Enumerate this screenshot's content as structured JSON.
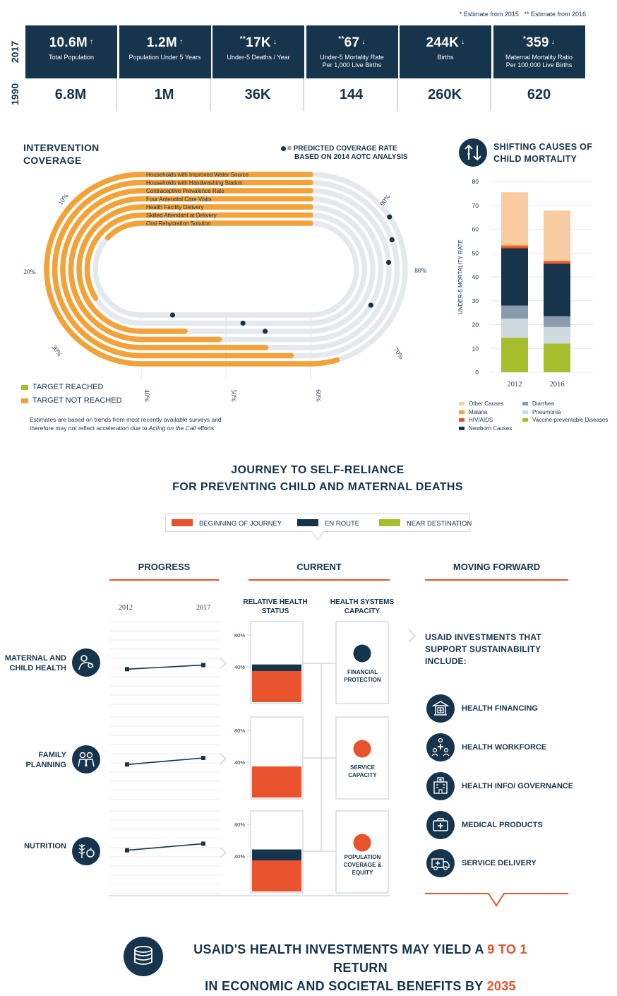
{
  "notes": {
    "n2015": "* Estimate from 2015",
    "n2016": "** Estimate from 2016"
  },
  "years": {
    "current": "2017",
    "baseline": "1990"
  },
  "stats": [
    {
      "prefix": "",
      "value": "10.6M",
      "arrow": "↑",
      "label": "Total Population",
      "label2": "",
      "baseline": "6.8M"
    },
    {
      "prefix": "",
      "value": "1.2M",
      "arrow": "↑",
      "label": "Population Under 5 Years",
      "label2": "",
      "baseline": "1M"
    },
    {
      "prefix": "**",
      "value": "17K",
      "arrow": "↓",
      "label": "Under-5 Deaths / Year",
      "label2": "",
      "baseline": "36K"
    },
    {
      "prefix": "**",
      "value": "67",
      "arrow": "↓",
      "label": "Under-5 Mortality Rate",
      "label2": "Per 1,000 Live Births",
      "baseline": "144"
    },
    {
      "prefix": "",
      "value": "244K",
      "arrow": "↓",
      "label": "Births",
      "label2": "",
      "baseline": "260K"
    },
    {
      "prefix": "*",
      "value": "359",
      "arrow": "↓",
      "label": "Maternal Mortality Ratio",
      "label2": "Per 100,000 Live Births",
      "baseline": "620"
    }
  ],
  "coverage": {
    "title1": "INTERVENTION",
    "title2": "COVERAGE",
    "predicted1": "= PREDICTED COVERAGE RATE",
    "predicted2": "BASED ON 2014 AOTC ANALYSIS",
    "legend_reached": "TARGET REACHED",
    "legend_not_reached": "TARGET NOT REACHED",
    "footnote1": "Estimates are based on trends from most recently available surveys and",
    "footnote2": "therefore may not reflect acceleration due to",
    "footnote_em": "Acting on the Call",
    "footnote3": "efforts",
    "ticks": [
      "10%",
      "20%",
      "30%",
      "40%",
      "50%",
      "60%",
      "70%",
      "80%",
      "90%"
    ]
  },
  "mortality": {
    "title1": "SHIFTING CAUSES OF",
    "title2": "CHILD MORTALITY",
    "ylabel": "UNDER-5 MORTALITY RATE",
    "legend": {
      "other": "Other Causes",
      "malaria": "Malaria",
      "hiv": "HIV/AIDS",
      "newborn": "Newborn Causes",
      "diarrhea": "Diarrhea",
      "pneumonia": "Pneumonia",
      "vaccine": "Vaccine-preventable Diseases"
    }
  },
  "chart_data": [
    {
      "type": "area",
      "name": "intervention-coverage",
      "series": [
        {
          "name": "Households with Improved Water Source",
          "coverage_pct": 8,
          "predicted_pct": 90
        },
        {
          "name": "Households with Handwashing Station",
          "coverage_pct": 8,
          "predicted_pct": 88
        },
        {
          "name": "Contraceptive Prevalence Rate",
          "coverage_pct": 8,
          "predicted_pct": 86
        },
        {
          "name": "Four Antenatal Care Visits",
          "coverage_pct": 8,
          "predicted_pct": 81
        },
        {
          "name": "Health Facility Delivery",
          "coverage_pct": 8,
          "predicted_pct": 67
        },
        {
          "name": "Skilled Attendant at Delivery",
          "coverage_pct": 8,
          "predicted_pct": 65
        },
        {
          "name": "Oral Rehydration Solution",
          "coverage_pct": 8,
          "predicted_pct": 55
        }
      ],
      "bar_values_pct": [
        71,
        67,
        65,
        60,
        56,
        42,
        33
      ]
    },
    {
      "type": "bar",
      "name": "shifting-causes-of-child-mortality",
      "categories": [
        "2012",
        "2016"
      ],
      "ylabel": "UNDER-5 MORTALITY RATE",
      "ylim": [
        0,
        80
      ],
      "yticks": [
        0,
        10,
        20,
        30,
        40,
        50,
        60,
        70,
        80
      ],
      "stacked": true,
      "series": [
        {
          "name": "Vaccine-preventable Diseases",
          "color": "#a8bf2d",
          "values": [
            14.5,
            12
          ]
        },
        {
          "name": "Pneumonia",
          "color": "#cfdade",
          "values": [
            8,
            7
          ]
        },
        {
          "name": "Diarrhea",
          "color": "#8a9bb0",
          "values": [
            5.5,
            4.5
          ]
        },
        {
          "name": "Newborn Causes",
          "color": "#16344c",
          "values": [
            24,
            22
          ]
        },
        {
          "name": "HIV/AIDS",
          "color": "#e8532d",
          "values": [
            1,
            1
          ]
        },
        {
          "name": "Malaria",
          "color": "#f3a23a",
          "values": [
            0.5,
            0.3
          ]
        },
        {
          "name": "Other Causes",
          "color": "#f8cba0",
          "values": [
            22,
            21
          ]
        }
      ]
    },
    {
      "type": "line",
      "name": "progress",
      "x": [
        "2012",
        "2017"
      ],
      "series": [
        {
          "name": "MATERNAL AND CHILD HEALTH",
          "values": [
            0.42,
            0.47
          ]
        },
        {
          "name": "FAMILY PLANNING",
          "values": [
            0.42,
            0.5
          ]
        },
        {
          "name": "NUTRITION",
          "values": [
            0.52,
            0.6
          ]
        }
      ]
    },
    {
      "type": "bar",
      "name": "relative-health-status",
      "yticks": [
        "80%",
        "40%"
      ],
      "series": [
        {
          "name": "MATERNAL AND CHILD HEALTH",
          "value_pct": 45,
          "color": "#16344c"
        },
        {
          "name": "FAMILY PLANNING",
          "value_pct": 40,
          "color": "#e8532d"
        },
        {
          "name": "NUTRITION",
          "value_pct": 50,
          "color": "#16344c"
        }
      ]
    }
  ],
  "journey": {
    "title1": "JOURNEY TO SELF-RELIANCE",
    "title2": "FOR PREVENTING CHILD AND MATERNAL DEATHS",
    "legend": [
      {
        "label": "BEGINNING OF JOURNEY",
        "color": "#e8532d"
      },
      {
        "label": "EN ROUTE",
        "color": "#16344c"
      },
      {
        "label": "NEAR DESTINATION",
        "color": "#a8bf2d"
      }
    ],
    "col_progress": "PROGRESS",
    "col_current": "CURRENT",
    "col_forward": "MOVING FORWARD",
    "year_start": "2012",
    "year_end": "2017",
    "rel_health1": "RELATIVE HEALTH",
    "rel_health2": "STATUS",
    "sys_cap1": "HEALTH SYSTEMS",
    "sys_cap2": "CAPACITY",
    "rows": [
      {
        "label1": "MATERNAL AND",
        "label2": "CHILD HEALTH",
        "icon": "mother-child-icon",
        "cap1": "FINANCIAL",
        "cap2": "PROTECTION",
        "cap3": "",
        "cap_color": "#16344c"
      },
      {
        "label1": "FAMILY",
        "label2": "PLANNING",
        "icon": "family-icon",
        "cap1": "SERVICE",
        "cap2": "CAPACITY",
        "cap3": "",
        "cap_color": "#e8532d"
      },
      {
        "label1": "",
        "label2": "NUTRITION",
        "icon": "nutrition-icon",
        "cap1": "POPULATION",
        "cap2": "COVERAGE &",
        "cap3": "EQUITY",
        "cap_color": "#e8532d"
      }
    ],
    "tick80": "80%",
    "tick40": "40%",
    "investments_title1": "USAID INVESTMENTS THAT",
    "investments_title2": "SUPPORT SUSTAINABILITY",
    "investments_title3": "INCLUDE:",
    "investments": [
      {
        "label": "HEALTH FINANCING",
        "icon": "bank-icon"
      },
      {
        "label": "HEALTH WORKFORCE",
        "icon": "workforce-icon"
      },
      {
        "label": "HEALTH INFO/ GOVERNANCE",
        "icon": "hospital-icon"
      },
      {
        "label": "MEDICAL PRODUCTS",
        "icon": "medkit-icon"
      },
      {
        "label": "SERVICE DELIVERY",
        "icon": "ambulance-icon"
      }
    ]
  },
  "bottom": {
    "line1a": "USAID'S HEALTH INVESTMENTS MAY YIELD A",
    "line1b": "9 TO 1",
    "line1c": "RETURN",
    "line2a": "IN ECONOMIC AND SOCIETAL BENEFITS BY",
    "line2b": "2035"
  }
}
